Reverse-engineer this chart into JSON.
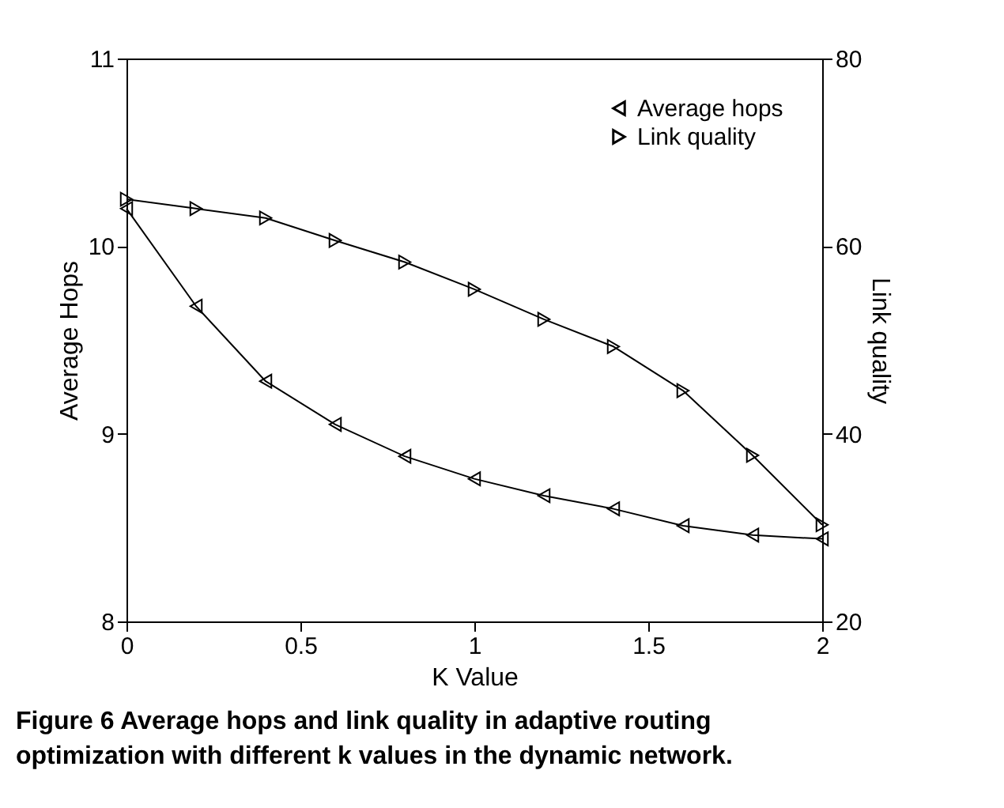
{
  "chart_data": {
    "type": "line",
    "xlabel": "K Value",
    "ylabel": "Average Hops",
    "y2label": "Link quality",
    "x": [
      0,
      0.2,
      0.4,
      0.6,
      0.8,
      1.0,
      1.2,
      1.4,
      1.6,
      1.8,
      2.0
    ],
    "series": [
      {
        "name": "Average hops",
        "color": "#000000",
        "axis": "y",
        "values": [
          10.2,
          9.68,
          9.28,
          9.05,
          8.88,
          8.76,
          8.67,
          8.6,
          8.51,
          8.46,
          8.44
        ]
      },
      {
        "name": "Link quality",
        "color": "#000000",
        "axis": "y2",
        "values": [
          65.0,
          64.0,
          63.0,
          60.6,
          58.3,
          55.4,
          52.2,
          49.3,
          44.6,
          37.7,
          30.3
        ]
      }
    ],
    "xlim": [
      0,
      2
    ],
    "xticks": [
      0,
      0.5,
      1,
      1.5,
      2
    ],
    "ylim": [
      8,
      11
    ],
    "yticks": [
      8,
      9,
      10,
      11
    ],
    "y2lim": [
      20,
      80
    ],
    "y2ticks": [
      20,
      40,
      60,
      80
    ],
    "marker": "triangle",
    "line_style": "solid",
    "grid": false,
    "legend": "top right",
    "annotations": [
      "Figure 6 Average hops and link quality in adaptive routing",
      "optimization with different k values in the dynamic network."
    ]
  }
}
